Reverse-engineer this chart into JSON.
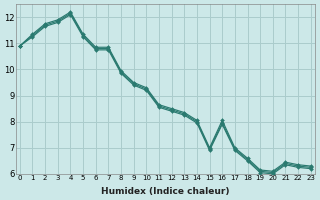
{
  "xlabel": "Humidex (Indice chaleur)",
  "ylabel": "",
  "bg_color": "#cce8e8",
  "grid_color": "#aacccc",
  "line_color": "#2a7a70",
  "marker_color": "#2a7a70",
  "xlim": [
    -0.3,
    23.3
  ],
  "ylim": [
    6,
    12.5
  ],
  "yticks": [
    6,
    7,
    8,
    9,
    10,
    11,
    12
  ],
  "xticks": [
    0,
    1,
    2,
    3,
    4,
    5,
    6,
    7,
    8,
    9,
    10,
    11,
    12,
    13,
    14,
    15,
    16,
    17,
    18,
    19,
    20,
    21,
    22,
    23
  ],
  "lines": [
    {
      "x": [
        0,
        1,
        2,
        3,
        4,
        5,
        6,
        7,
        8,
        9,
        10,
        11,
        12,
        13,
        14,
        15,
        16,
        17,
        18,
        19,
        20,
        21,
        22,
        23
      ],
      "y": [
        10.9,
        11.35,
        11.75,
        11.9,
        12.2,
        11.35,
        10.85,
        10.85,
        9.95,
        9.5,
        9.3,
        8.65,
        8.5,
        8.35,
        8.05,
        7.0,
        8.05,
        7.0,
        6.6,
        6.15,
        6.1,
        6.45,
        6.35,
        6.3
      ]
    },
    {
      "x": [
        0,
        1,
        2,
        3,
        4,
        5,
        6,
        7,
        8,
        9,
        10,
        11,
        12,
        13,
        14,
        15,
        16,
        17,
        18,
        19,
        20,
        21,
        22,
        23
      ],
      "y": [
        10.9,
        11.3,
        11.7,
        11.85,
        12.15,
        11.3,
        10.8,
        10.8,
        9.9,
        9.45,
        9.25,
        8.6,
        8.45,
        8.3,
        8.0,
        6.95,
        7.95,
        6.95,
        6.55,
        6.1,
        6.05,
        6.4,
        6.3,
        6.25
      ]
    },
    {
      "x": [
        0,
        1,
        2,
        3,
        4,
        5,
        6,
        7,
        8,
        9,
        10,
        11,
        12,
        13,
        14,
        15,
        16,
        17,
        18,
        19,
        20,
        21,
        22,
        23
      ],
      "y": [
        10.9,
        11.25,
        11.65,
        11.8,
        12.1,
        11.25,
        10.75,
        10.75,
        9.85,
        9.4,
        9.2,
        8.55,
        8.4,
        8.25,
        7.95,
        6.9,
        7.9,
        6.9,
        6.5,
        6.05,
        6.0,
        6.35,
        6.25,
        6.2
      ]
    }
  ]
}
